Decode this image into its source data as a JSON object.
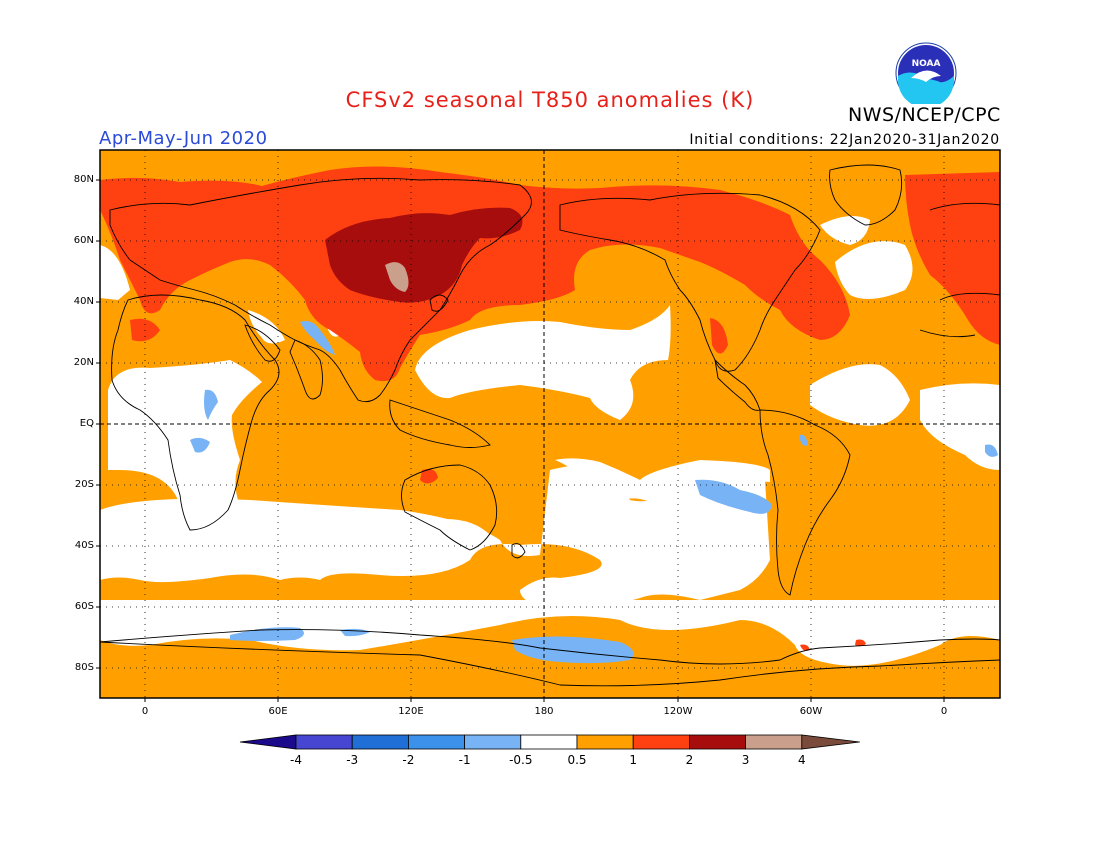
{
  "title": "CFSv2 seasonal T850 anomalies (K)",
  "organization": "NWS/NCEP/CPC",
  "logo_text": "NOAA",
  "period": "Apr-May-Jun 2020",
  "initial_conditions": "Initial conditions: 22Jan2020-31Jan2020",
  "lat_labels": [
    "80N",
    "60N",
    "40N",
    "20N",
    "EQ",
    "20S",
    "40S",
    "60S",
    "80S"
  ],
  "lon_labels": [
    "0",
    "60E",
    "120E",
    "180",
    "120W",
    "60W",
    "0"
  ],
  "colorbar": {
    "labels": [
      "-4",
      "-3",
      "-2",
      "-1",
      "-0.5",
      "0.5",
      "1",
      "2",
      "3",
      "4"
    ],
    "colors": [
      "#1c0a8c",
      "#4646d2",
      "#1f6fd6",
      "#3c91ea",
      "#78b4f5",
      "#ffffff",
      "#ffa000",
      "#ff4010",
      "#a80d0d",
      "#caa08c",
      "#7a4a3a"
    ]
  },
  "colors": {
    "warm1": "#ffa000",
    "warm2": "#ff4010",
    "warm3": "#a80d0d",
    "warm4": "#caa08c",
    "cool1": "#78b4f5",
    "title": "#e8201a",
    "period": "#2b4bd9"
  }
}
